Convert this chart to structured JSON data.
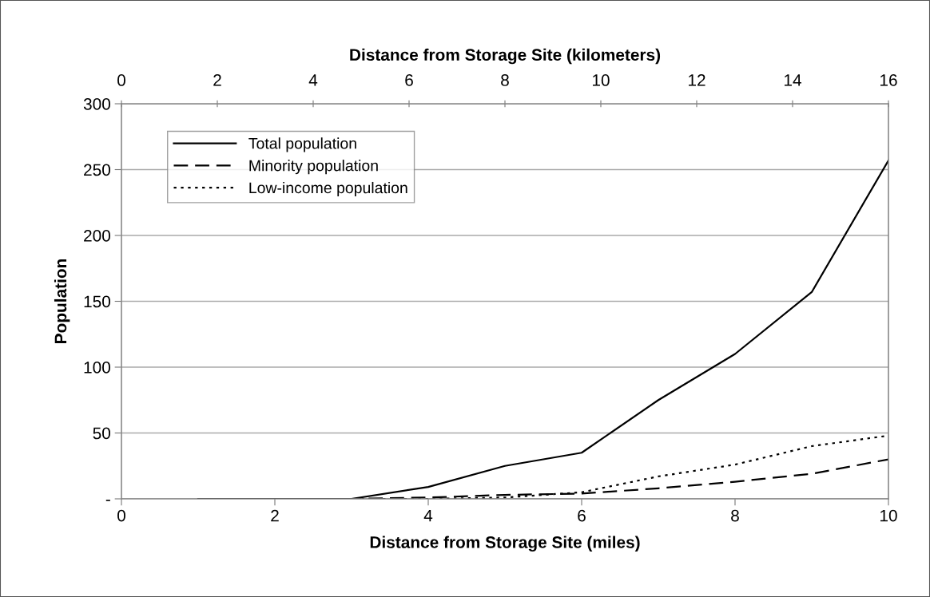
{
  "chart_data": {
    "type": "line",
    "xlabel": "Distance from Storage Site (miles)",
    "x2label": "Distance from Storage Site (kilometers)",
    "ylabel": "Population",
    "x": [
      1,
      2,
      3,
      4,
      5,
      6,
      7,
      8,
      9,
      10
    ],
    "series": [
      {
        "name": "Total population",
        "color": "#000000",
        "line_style": "solid",
        "values": [
          0,
          0,
          0,
          9,
          25,
          35,
          75,
          110,
          157,
          257
        ]
      },
      {
        "name": "Minority population",
        "color": "#000000",
        "line_style": "dashed",
        "values": [
          0,
          0,
          0,
          1,
          3,
          4,
          8,
          13,
          19,
          30
        ]
      },
      {
        "name": "Low-income population",
        "color": "#000000",
        "line_style": "dotted",
        "values": [
          0,
          0,
          0,
          0,
          1,
          5,
          17,
          26,
          40,
          48
        ]
      }
    ],
    "xlim": [
      0,
      10
    ],
    "xticks": [
      0,
      2,
      4,
      6,
      8,
      10
    ],
    "x2lim": [
      0,
      16
    ],
    "x2ticks": [
      0,
      2,
      4,
      6,
      8,
      10,
      12,
      14,
      16
    ],
    "ylim": [
      0,
      300
    ],
    "yticks": [
      {
        "value": 0,
        "label": "-"
      },
      50,
      100,
      150,
      200,
      250,
      300
    ],
    "grid": "y",
    "legend": "top left",
    "marker": "none"
  }
}
